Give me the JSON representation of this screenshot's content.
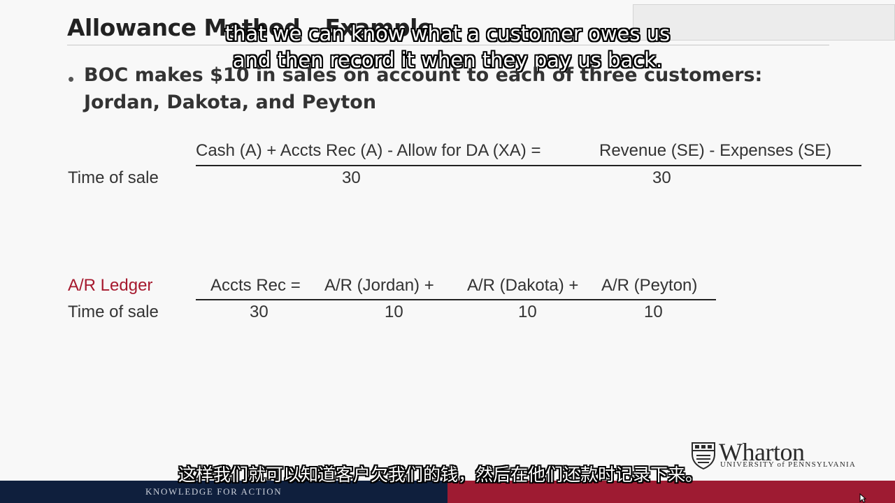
{
  "slide": {
    "title": "Allowance Method - Example",
    "bullet_text_line1": "BOC makes $10 in sales on account to each of three customers:",
    "bullet_text_line2": "Jordan, Dakota, and Peyton"
  },
  "equation_table": {
    "header_left": "Cash (A) + Accts Rec (A) - Allow for DA (XA) =",
    "header_right": "Revenue (SE) - Expenses (SE)",
    "row_label": "Time of sale",
    "left_value": "30",
    "right_value": "30"
  },
  "ledger_table": {
    "label": "A/R Ledger",
    "headers": [
      "Accts Rec =",
      "A/R (Jordan) +",
      "A/R (Dakota) +",
      "A/R (Peyton)"
    ],
    "row_label": "Time of sale",
    "values": [
      "30",
      "10",
      "10",
      "10"
    ]
  },
  "subtitles": {
    "english_line1": "that we can know what a customer owes us",
    "english_line2": "and then record it when they pay us back.",
    "chinese": "这样我们就可以知道客户欠我们的钱，然后在他们还款时记录下来。"
  },
  "branding": {
    "logo_word": "Wharton",
    "logo_sub": "UNIVERSITY of PENNSYLVANIA",
    "footer_tagline": "KNOWLEDGE FOR ACTION"
  },
  "colors": {
    "accent_red": "#a6192e",
    "footer_navy": "#0f1f3d",
    "footer_red": "#9e1b32"
  },
  "icons": [
    "shield-icon",
    "cursor-icon"
  ]
}
